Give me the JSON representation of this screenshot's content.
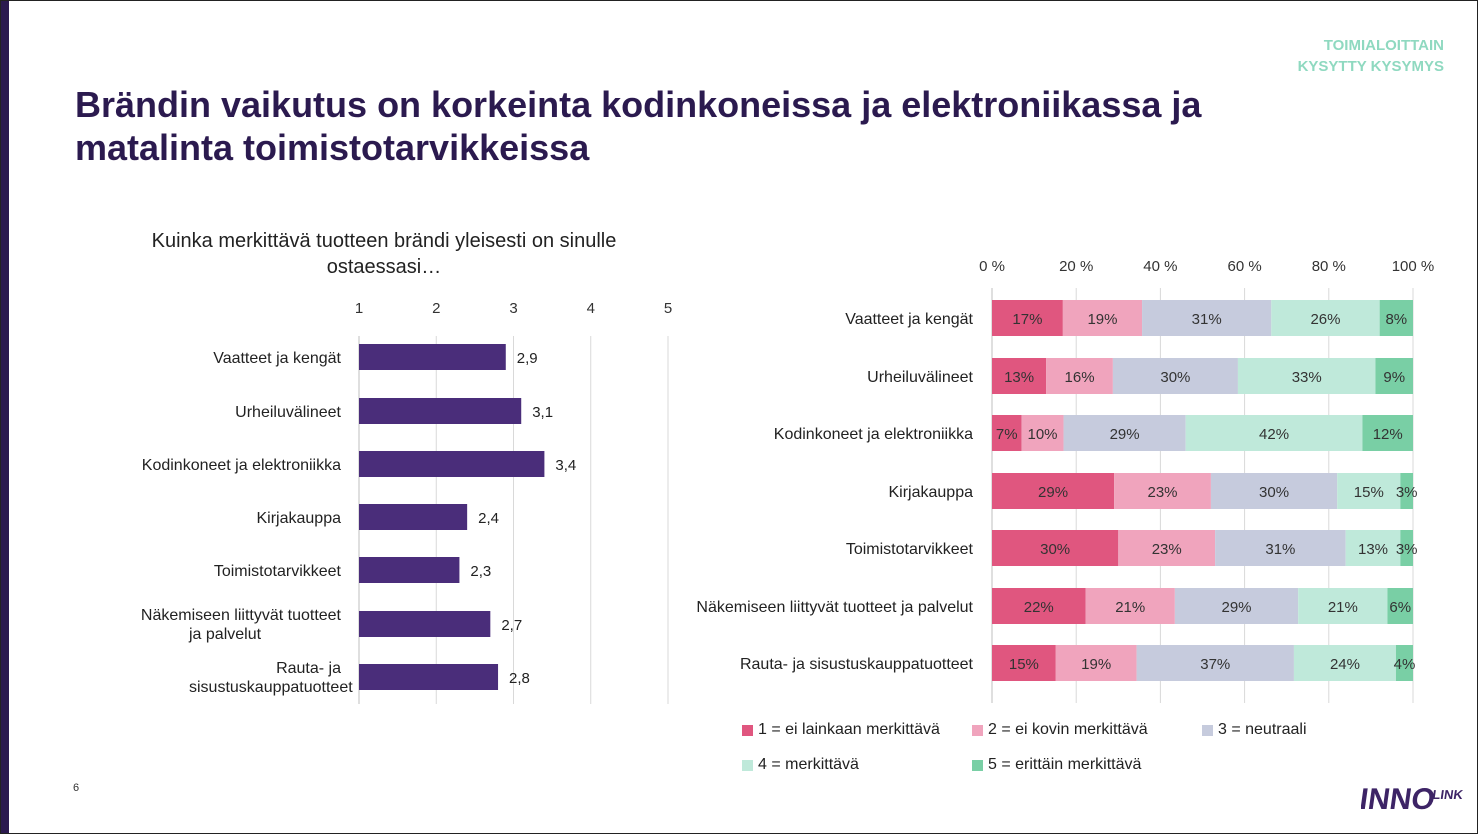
{
  "header": {
    "tag_line1": "TOIMIALOITTAIN",
    "tag_line2": "KYSYTTY KYSYMYS",
    "title": "Brändin vaikutus on korkeinta kodinkoneissa ja elektroniikassa ja matalinta toimistotarvikkeissa"
  },
  "question": "Kuinka merkittävä tuotteen brändi yleisesti on sinulle ostaessasi…",
  "page_number": "6",
  "logo_text": "INNOLINK",
  "colors": {
    "bar": "#4a2d7a",
    "title": "#2b1a4f",
    "tag": "#8fd9c0",
    "s1": "#e0567f",
    "s2": "#f0a4bd",
    "s3": "#c6cbdd",
    "s4": "#bfe9da",
    "s5": "#79cfa5"
  },
  "chart_data": [
    {
      "type": "bar",
      "orientation": "horizontal",
      "categories": [
        "Vaatteet ja kengät",
        "Urheiluvälineet",
        "Kodinkoneet ja elektroniikka",
        "Kirjakauppa",
        "Toimistotarvikkeet",
        "Näkemiseen liittyvät tuotteet ja palvelut",
        "Rauta- ja sisustuskauppatuotteet"
      ],
      "values": [
        2.9,
        3.1,
        3.4,
        2.4,
        2.3,
        2.7,
        2.8
      ],
      "value_labels": [
        "2,9",
        "3,1",
        "3,4",
        "2,4",
        "2,3",
        "2,7",
        "2,8"
      ],
      "xlim": [
        1,
        5
      ],
      "ticks": [
        "1",
        "2",
        "3",
        "4",
        "5"
      ],
      "grid": true
    },
    {
      "type": "bar",
      "orientation": "horizontal",
      "stacked": "percent",
      "categories": [
        "Vaatteet ja kengät",
        "Urheiluvälineet",
        "Kodinkoneet ja elektroniikka",
        "Kirjakauppa",
        "Toimistotarvikkeet",
        "Näkemiseen liittyvät tuotteet ja palvelut",
        "Rauta- ja sisustuskauppatuotteet"
      ],
      "series": [
        {
          "name": "1 = ei lainkaan merkittävä",
          "values": [
            17,
            13,
            7,
            29,
            30,
            22,
            15
          ]
        },
        {
          "name": "2 = ei kovin merkittävä",
          "values": [
            19,
            16,
            10,
            23,
            23,
            21,
            19
          ]
        },
        {
          "name": "3 = neutraali",
          "values": [
            31,
            30,
            29,
            30,
            31,
            29,
            37
          ]
        },
        {
          "name": "4 = merkittävä",
          "values": [
            26,
            33,
            42,
            15,
            13,
            21,
            24
          ]
        },
        {
          "name": "5 = erittäin merkittävä",
          "values": [
            8,
            9,
            12,
            3,
            3,
            6,
            4
          ]
        }
      ],
      "xlim": [
        0,
        100
      ],
      "ticks": [
        "0 %",
        "20 %",
        "40 %",
        "60 %",
        "80 %",
        "100 %"
      ],
      "legend": "bottom",
      "grid": true
    }
  ]
}
